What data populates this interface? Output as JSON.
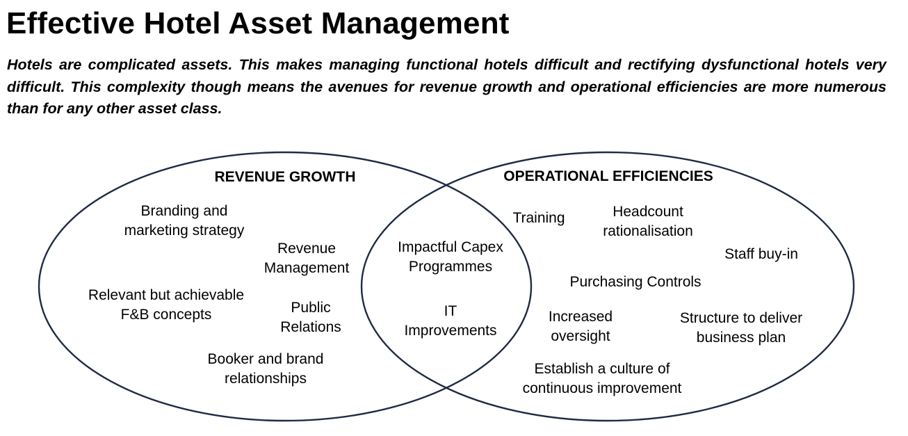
{
  "title": "Effective Hotel Asset Management",
  "intro": "Hotels are complicated assets. This makes managing functional hotels difficult and rectifying dysfunctional hotels very difficult. This complexity though means the avenues for revenue growth and operational efficiencies are more numerous than for any other asset class.",
  "diagram": {
    "colors": {
      "outline": "#1f2a44",
      "text": "#000000"
    },
    "revenue_growth": {
      "label": "REVENUE GROWTH",
      "items": [
        "Branding and\nmarketing strategy",
        "Revenue\nManagement",
        "Relevant but achievable\nF&B concepts",
        "Public\nRelations",
        "Booker and brand\nrelationships"
      ]
    },
    "overlap": {
      "items": [
        "Impactful Capex\nProgrammes",
        "IT\nImprovements"
      ]
    },
    "operational_efficiencies": {
      "label": "OPERATIONAL EFFICIENCIES",
      "items": [
        "Training",
        "Headcount\nrationalisation",
        "Staff buy-in",
        "Purchasing Controls",
        "Increased\noversight",
        "Structure to deliver\nbusiness plan",
        "Establish a culture of\ncontinuous improvement"
      ]
    }
  }
}
